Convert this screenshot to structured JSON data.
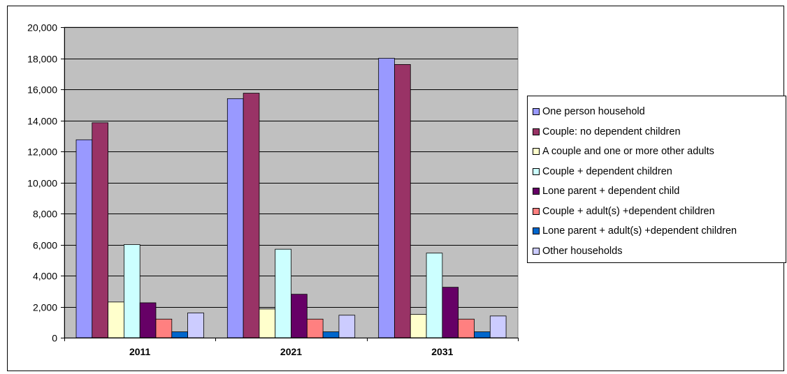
{
  "chart_data": {
    "type": "bar",
    "categories": [
      "2011",
      "2021",
      "2031"
    ],
    "series": [
      {
        "name": "One person household",
        "color": "#9999ff",
        "values": [
          12750,
          15400,
          18000
        ]
      },
      {
        "name": "Couple: no dependent children",
        "color": "#993366",
        "values": [
          13850,
          15750,
          17600
        ]
      },
      {
        "name": "A couple and one or more other adults",
        "color": "#ffffcc",
        "values": [
          2300,
          1850,
          1500
        ]
      },
      {
        "name": "Couple + dependent children",
        "color": "#ccffff",
        "values": [
          6000,
          5700,
          5450
        ]
      },
      {
        "name": "Lone parent + dependent child",
        "color": "#660066",
        "values": [
          2250,
          2800,
          3250
        ]
      },
      {
        "name": "Couple + adult(s) +dependent children",
        "color": "#ff8080",
        "values": [
          1200,
          1200,
          1200
        ]
      },
      {
        "name": "Lone parent + adult(s) +dependent children",
        "color": "#0066cc",
        "values": [
          380,
          380,
          380
        ]
      },
      {
        "name": "Other households",
        "color": "#ccccff",
        "values": [
          1600,
          1450,
          1400
        ]
      }
    ],
    "ylim": [
      0,
      20000
    ],
    "yticks": [
      "0",
      "2,000",
      "4,000",
      "6,000",
      "8,000",
      "10,000",
      "12,000",
      "14,000",
      "16,000",
      "18,000",
      "20,000"
    ],
    "grid": true,
    "legend_position": "right",
    "plot_background": "#c0c0c0"
  }
}
